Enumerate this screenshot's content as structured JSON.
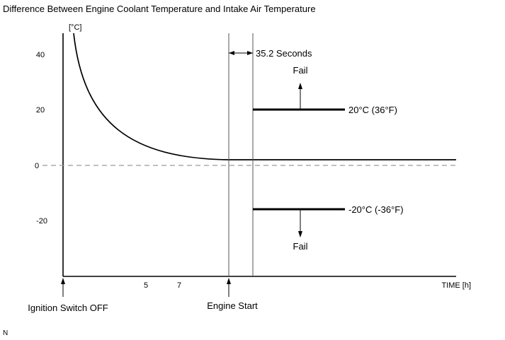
{
  "title": "Difference Between Engine Coolant Temperature and Intake Air Temperature",
  "axes": {
    "y_unit": "[°C]",
    "x_unit": "TIME [h]",
    "y_ticks": [
      "40",
      "20",
      "0",
      "-20"
    ],
    "x_ticks": [
      "5",
      "7"
    ]
  },
  "annotations": {
    "interval": "35.2 Seconds",
    "fail_upper": "Fail",
    "fail_lower": "Fail",
    "upper_threshold": "20°C (36°F)",
    "lower_threshold": "-20°C (-36°F)",
    "event_left": "Ignition Switch OFF",
    "event_right": "Engine Start"
  },
  "corner_mark": "N",
  "colors": {
    "line": "#000000",
    "guide_line": "#555555",
    "zero_dash": "#9a9a9a"
  }
}
